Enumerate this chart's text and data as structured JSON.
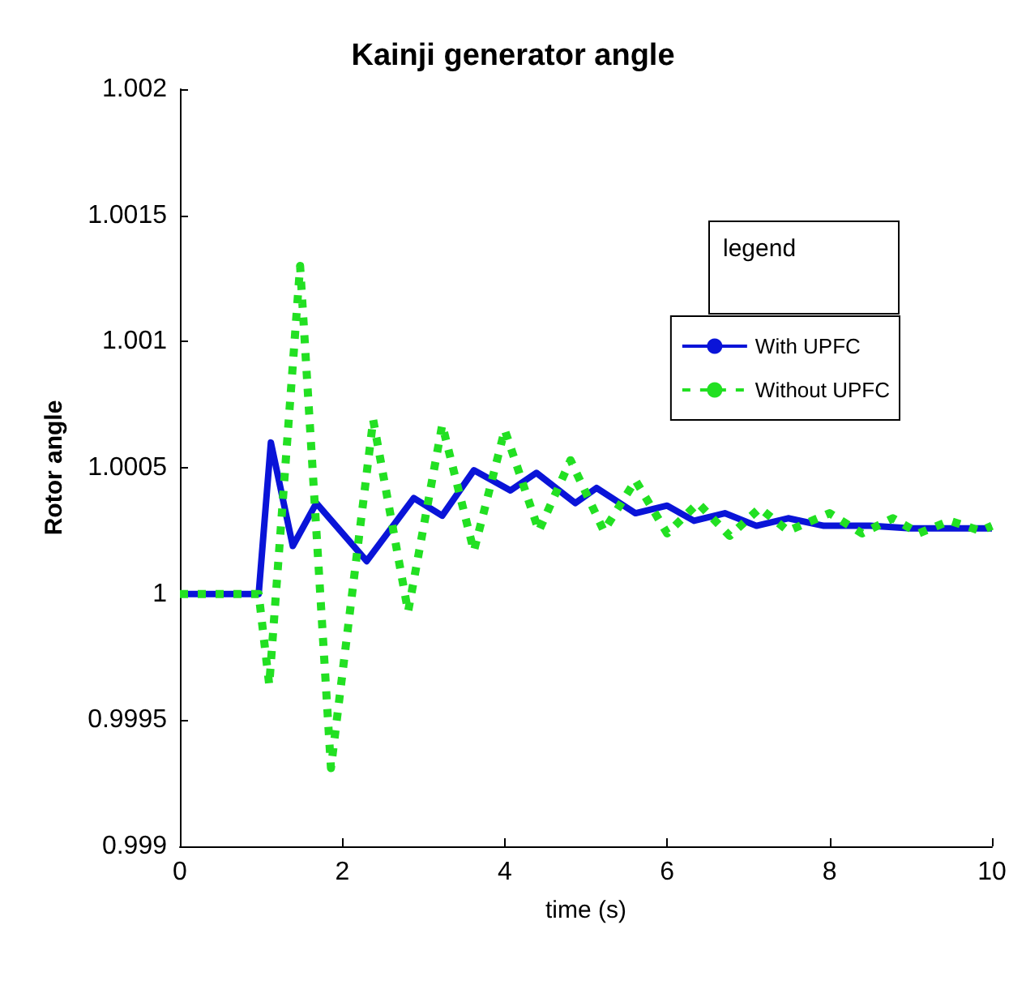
{
  "chart_data": {
    "type": "line",
    "title": "Kainji generator angle",
    "xlabel": "time (s)",
    "ylabel": "Rotor angle",
    "legend_title": "legend",
    "legend": "top right",
    "grid": false,
    "marker": "none",
    "xlim": [
      0,
      10
    ],
    "xticks": [
      0,
      2,
      4,
      6,
      8,
      10
    ],
    "ylim": [
      0.999,
      1.002
    ],
    "yticks": [
      0.999,
      0.9995,
      1,
      1.0005,
      1.001,
      1.0015,
      1.002
    ],
    "series": [
      {
        "name": "With UPFC",
        "color": "#0a14d8",
        "line_style": "solid",
        "x": [
          0,
          0.97,
          1.12,
          1.39,
          1.68,
          2.3,
          2.88,
          3.23,
          3.62,
          4.07,
          4.39,
          4.87,
          5.13,
          5.61,
          6.0,
          6.33,
          6.71,
          7.1,
          7.49,
          7.93,
          8.5,
          9.0,
          10
        ],
        "values": [
          1,
          1,
          1.0006,
          1.00019,
          1.00036,
          1.00013,
          1.00038,
          1.00031,
          1.00049,
          1.00041,
          1.00048,
          1.00036,
          1.00042,
          1.00032,
          1.00035,
          1.00029,
          1.00032,
          1.00027,
          1.0003,
          1.00027,
          1.00027,
          1.00026,
          1.00026
        ]
      },
      {
        "name": "Without UPFC",
        "color": "#22e022",
        "line_style": "dotted",
        "x": [
          0,
          0.97,
          1.1,
          1.48,
          1.86,
          2.38,
          2.81,
          3.23,
          3.62,
          4.0,
          4.42,
          4.81,
          5.22,
          5.61,
          6.0,
          6.38,
          6.77,
          7.14,
          7.49,
          8.0,
          8.4,
          8.78,
          9.1,
          9.48,
          9.86,
          10
        ],
        "values": [
          1,
          1,
          0.99964,
          1.0013,
          0.99931,
          1.00069,
          0.99993,
          1.00067,
          1.00017,
          1.00065,
          1.00025,
          1.00053,
          1.00025,
          1.00045,
          1.00024,
          1.00036,
          1.00023,
          1.00034,
          1.00025,
          1.00032,
          1.00024,
          1.0003,
          1.00024,
          1.00029,
          1.00025,
          1.00027
        ]
      }
    ]
  }
}
